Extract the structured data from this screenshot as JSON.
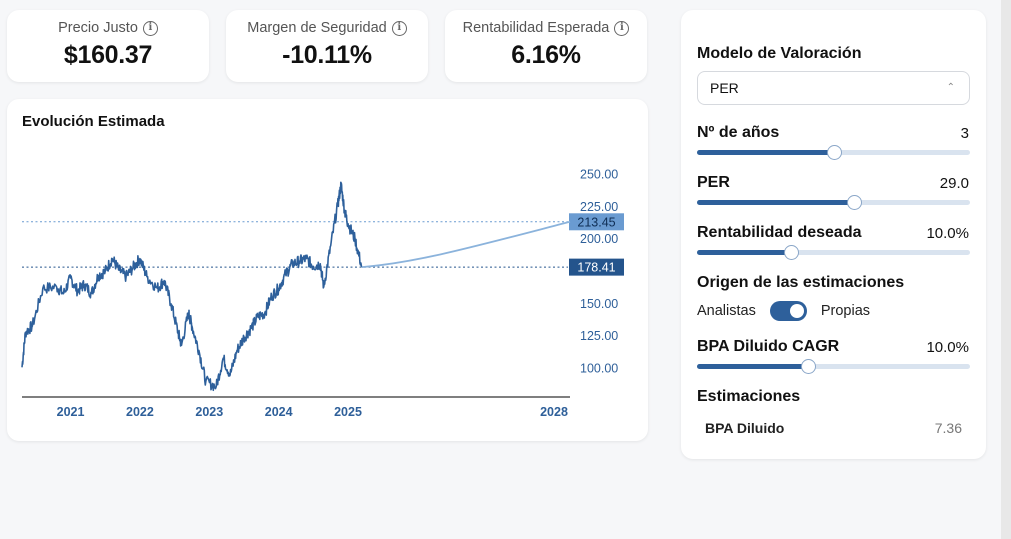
{
  "metrics": [
    {
      "label": "Precio Justo",
      "value": "$160.37"
    },
    {
      "label": "Margen de Seguridad",
      "value": "-10.11%"
    },
    {
      "label": "Rentabilidad Esperada",
      "value": "6.16%"
    }
  ],
  "info_glyph": "i",
  "chart": {
    "title": "Evolución Estimada"
  },
  "chart_data": {
    "type": "line",
    "title": "Evolución Estimada",
    "x_ticks": [
      "2021",
      "2022",
      "2023",
      "2024",
      "2025",
      "2028"
    ],
    "y_ticks": [
      "100.00",
      "125.00",
      "150.00",
      "200.00",
      "225.00",
      "250.00"
    ],
    "ylim": [
      78,
      262
    ],
    "reference_lines": [
      {
        "value": 213.45,
        "label": "213.45",
        "color": "#6a9bd1"
      },
      {
        "value": 178.41,
        "label": "178.41",
        "color": "#24548c"
      }
    ],
    "series": [
      {
        "type": "historical",
        "color": "#2e609b",
        "points": [
          [
            2020.3,
            101
          ],
          [
            2020.35,
            128
          ],
          [
            2020.45,
            133
          ],
          [
            2020.6,
            162
          ],
          [
            2020.8,
            163
          ],
          [
            2020.9,
            158
          ],
          [
            2021.0,
            170
          ],
          [
            2021.1,
            160
          ],
          [
            2021.2,
            165
          ],
          [
            2021.3,
            158
          ],
          [
            2021.4,
            172
          ],
          [
            2021.5,
            175
          ],
          [
            2021.6,
            185
          ],
          [
            2021.7,
            176
          ],
          [
            2021.8,
            171
          ],
          [
            2021.9,
            178
          ],
          [
            2022.0,
            185
          ],
          [
            2022.1,
            171
          ],
          [
            2022.25,
            162
          ],
          [
            2022.35,
            168
          ],
          [
            2022.45,
            150
          ],
          [
            2022.55,
            128
          ],
          [
            2022.6,
            118
          ],
          [
            2022.7,
            143
          ],
          [
            2022.75,
            133
          ],
          [
            2022.85,
            114
          ],
          [
            2022.95,
            90
          ],
          [
            2023.1,
            86
          ],
          [
            2023.2,
            108
          ],
          [
            2023.3,
            95
          ],
          [
            2023.4,
            114
          ],
          [
            2023.5,
            124
          ],
          [
            2023.6,
            131
          ],
          [
            2023.7,
            140
          ],
          [
            2023.8,
            143
          ],
          [
            2023.9,
            156
          ],
          [
            2024.0,
            162
          ],
          [
            2024.1,
            173
          ],
          [
            2024.2,
            181
          ],
          [
            2024.3,
            183
          ],
          [
            2024.4,
            185
          ],
          [
            2024.5,
            179
          ],
          [
            2024.6,
            181
          ],
          [
            2024.65,
            163
          ],
          [
            2024.75,
            195
          ],
          [
            2024.85,
            226
          ],
          [
            2024.9,
            242
          ],
          [
            2024.95,
            222
          ],
          [
            2025.0,
            212
          ],
          [
            2025.1,
            200
          ],
          [
            2025.2,
            178.41
          ]
        ]
      },
      {
        "type": "projection",
        "color": "#8bb3dc",
        "points": [
          [
            2025.2,
            178.41
          ],
          [
            2026,
            182
          ],
          [
            2026.8,
            194
          ],
          [
            2028.2,
            213.45
          ]
        ]
      }
    ]
  },
  "panel": {
    "model_heading": "Modelo de Valoración",
    "model_select": "PER",
    "years_label": "Nº de años",
    "years_value": "3",
    "years_fraction": 0.5,
    "per_label": "PER",
    "per_value": "29.0",
    "per_fraction": 0.575,
    "return_label": "Rentabilidad deseada",
    "return_value": "10.0%",
    "return_fraction": 0.345,
    "origin_heading": "Origen de las estimaciones",
    "origin_left": "Analistas",
    "origin_right": "Propias",
    "origin_toggle_on": true,
    "cagr_label": "BPA Diluido CAGR",
    "cagr_value": "10.0%",
    "cagr_fraction": 0.405,
    "estimates_heading": "Estimaciones",
    "estimate_label": "BPA Diluido",
    "estimate_value": "7.36"
  }
}
